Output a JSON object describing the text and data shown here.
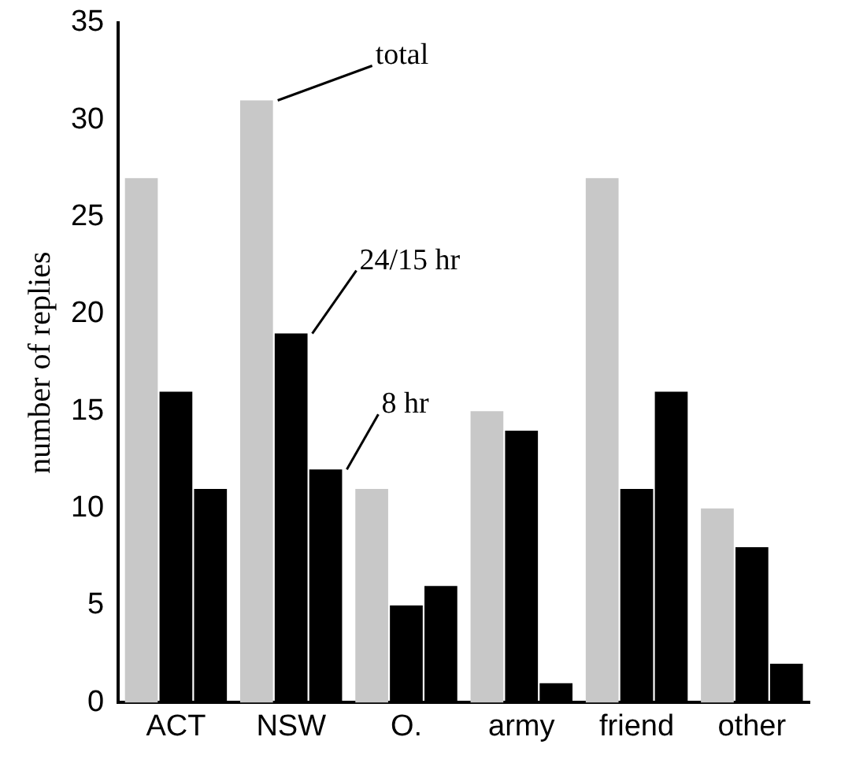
{
  "chart_data": {
    "type": "bar",
    "ylabel": "number of replies",
    "categories": [
      "ACT",
      "NSW",
      "O.",
      "army",
      "friend",
      "other"
    ],
    "series": [
      {
        "name": "total",
        "color": "#c8c8c8",
        "values": [
          27,
          31,
          11,
          15,
          27,
          10
        ]
      },
      {
        "name": "24/15 hr",
        "color": "#000000",
        "values": [
          16,
          19,
          5,
          14,
          11,
          8
        ]
      },
      {
        "name": "8 hr",
        "color": "#000000",
        "values": [
          11,
          12,
          6,
          1,
          16,
          2
        ]
      }
    ],
    "ylim": [
      0,
      35
    ],
    "yticks": [
      0,
      5,
      10,
      15,
      20,
      25,
      30,
      35
    ],
    "grid": false,
    "legend": false
  }
}
